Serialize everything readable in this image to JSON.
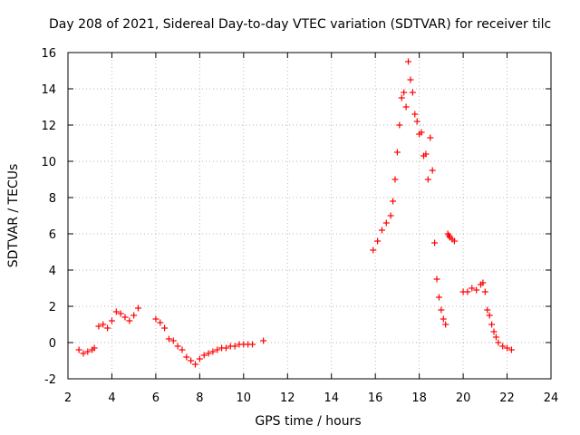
{
  "chart_data": {
    "type": "scatter",
    "title": "Day 208 of 2021, Sidereal Day-to-day VTEC variation (SDTVAR) for receiver tilc",
    "xlabel": "GPS time / hours",
    "ylabel": "SDTVAR / TECUs",
    "xlim": [
      2,
      24
    ],
    "ylim": [
      -2,
      16
    ],
    "xticks": [
      "2",
      "4",
      "6",
      "8",
      "10",
      "12",
      "14",
      "16",
      "18",
      "20",
      "22",
      "24"
    ],
    "yticks": [
      "-2",
      "0",
      "2",
      "4",
      "6",
      "8",
      "10",
      "12",
      "14",
      "16"
    ],
    "grid": true,
    "marker": "+",
    "color": "#ff0000",
    "series": [
      {
        "name": "SDTVAR",
        "x": [
          2.5,
          2.7,
          2.9,
          3.1,
          3.2,
          3.4,
          3.6,
          3.8,
          4.0,
          4.2,
          4.4,
          4.6,
          4.8,
          5.0,
          5.2,
          6.0,
          6.2,
          6.4,
          6.6,
          6.8,
          7.0,
          7.2,
          7.4,
          7.6,
          7.8,
          8.0,
          8.2,
          8.4,
          8.6,
          8.8,
          9.0,
          9.2,
          9.4,
          9.6,
          9.8,
          10.0,
          10.2,
          10.4,
          10.9,
          15.9,
          16.1,
          16.3,
          16.5,
          16.7,
          16.8,
          16.9,
          17.0,
          17.1,
          17.2,
          17.3,
          17.4,
          17.5,
          17.6,
          17.7,
          17.8,
          17.9,
          18.0,
          18.1,
          18.2,
          18.3,
          18.4,
          18.5,
          18.6,
          18.7,
          18.8,
          18.9,
          19.0,
          19.1,
          19.2,
          19.3,
          19.35,
          19.4,
          19.5,
          19.6,
          20.0,
          20.2,
          20.4,
          20.6,
          20.8,
          20.9,
          21.0,
          21.1,
          21.2,
          21.3,
          21.4,
          21.5,
          21.6,
          21.8,
          22.0,
          22.2
        ],
        "y": [
          -0.4,
          -0.6,
          -0.5,
          -0.4,
          -0.3,
          0.9,
          1.0,
          0.8,
          1.2,
          1.7,
          1.6,
          1.4,
          1.2,
          1.5,
          1.9,
          1.3,
          1.1,
          0.8,
          0.2,
          0.1,
          -0.2,
          -0.4,
          -0.8,
          -1.0,
          -1.2,
          -0.9,
          -0.7,
          -0.6,
          -0.5,
          -0.4,
          -0.3,
          -0.3,
          -0.2,
          -0.2,
          -0.1,
          -0.1,
          -0.1,
          -0.1,
          0.1,
          5.1,
          5.6,
          6.2,
          6.6,
          7.0,
          7.8,
          9.0,
          10.5,
          12.0,
          13.5,
          13.8,
          13.0,
          15.5,
          14.5,
          13.8,
          12.6,
          12.2,
          11.5,
          11.6,
          10.3,
          10.4,
          9.0,
          11.3,
          9.5,
          5.5,
          3.5,
          2.5,
          1.8,
          1.3,
          1.0,
          6.0,
          5.9,
          5.8,
          5.7,
          5.6,
          2.8,
          2.8,
          3.0,
          2.9,
          3.2,
          3.3,
          2.8,
          1.8,
          1.5,
          1.0,
          0.6,
          0.3,
          0.0,
          -0.2,
          -0.3,
          -0.4
        ]
      }
    ]
  }
}
